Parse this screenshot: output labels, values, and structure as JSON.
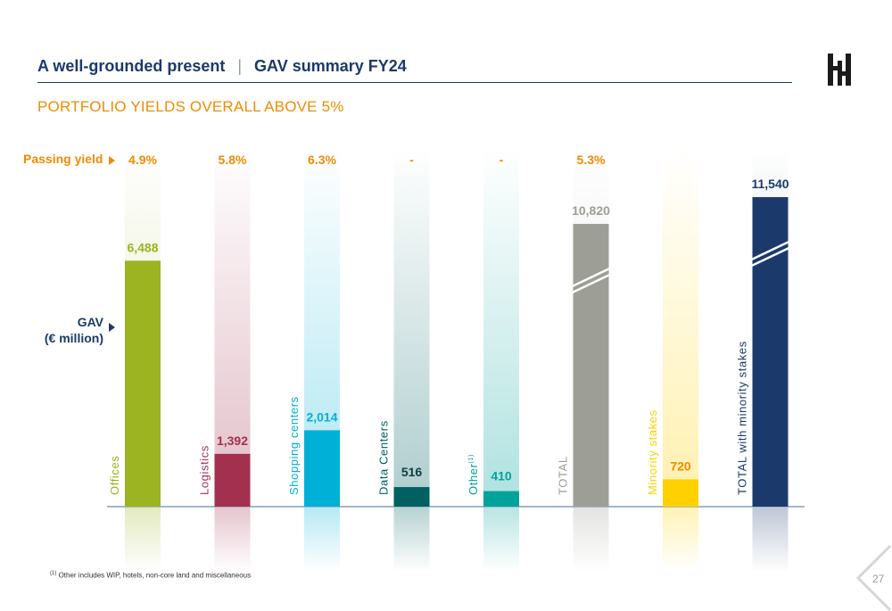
{
  "header": {
    "title_left": "A well-grounded present",
    "separator": "|",
    "title_right": "GAV summary FY24"
  },
  "subtitle": "PORTFOLIO YIELDS OVERALL ABOVE 5%",
  "row_labels": {
    "passing_yield": "Passing yield",
    "gav_line1": "GAV",
    "gav_line2": "(€ million)"
  },
  "colors": {
    "accent_orange": "#f08c00",
    "navy": "#1b3a6b"
  },
  "chart_data": {
    "type": "bar",
    "categories": [
      "Offices",
      "Logistics",
      "Shopping centers",
      "Data Centers",
      "Other",
      "TOTAL",
      "Minority stakes",
      "TOTAL with minority stakes"
    ],
    "category_superscripts": [
      "",
      "",
      "",
      "",
      "(1)",
      "",
      "",
      ""
    ],
    "values": [
      6488,
      1392,
      2014,
      516,
      410,
      10820,
      720,
      11540
    ],
    "value_labels": [
      "6,488",
      "1,392",
      "2,014",
      "516",
      "410",
      "10,820",
      "720",
      "11,540"
    ],
    "passing_yields": [
      "4.9%",
      "5.8%",
      "6.3%",
      "-",
      "-",
      "5.3%",
      "",
      ""
    ],
    "bar_colors": [
      "#9cb322",
      "#a3304f",
      "#00b0d6",
      "#005f61",
      "#00a39b",
      "#9d9e95",
      "#ffd100",
      "#1b3a6b"
    ],
    "value_label_colors": [
      "#9cb322",
      "#a3304f",
      "#00b0d6",
      "#0c3f3f",
      "#00a39b",
      "#9d9e95",
      "#f08c00",
      "#1b3a6b"
    ],
    "axis_break": [
      false,
      false,
      false,
      false,
      false,
      true,
      false,
      true
    ],
    "title": "",
    "xlabel": "",
    "ylabel": "GAV (€ million)",
    "grid": false,
    "legend": "none"
  },
  "footnote": {
    "marker": "(1)",
    "text": "Other includes WIP, hotels, non-core land and miscellaneous"
  },
  "page_number": "27"
}
